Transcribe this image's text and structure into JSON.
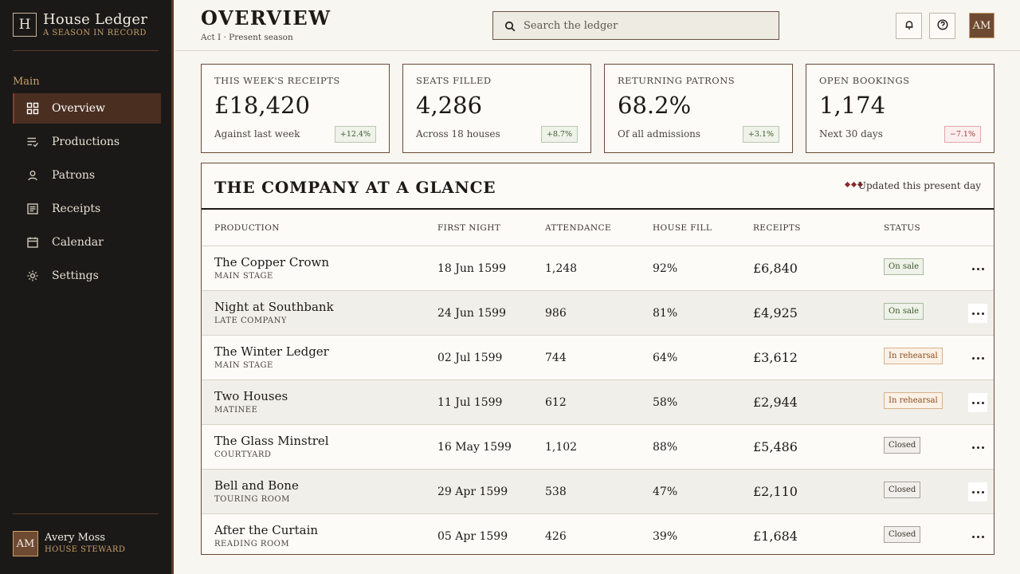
{
  "brand": {
    "mark": "H",
    "title": "House Ledger",
    "subtitle": "A SEASON IN RECORD"
  },
  "sidebar": {
    "section_label": "Main",
    "items": [
      {
        "label": "Overview",
        "icon": "grid-icon",
        "active": true
      },
      {
        "label": "Productions",
        "icon": "list-check-icon",
        "active": false
      },
      {
        "label": "Patrons",
        "icon": "person-icon",
        "active": false
      },
      {
        "label": "Receipts",
        "icon": "receipt-icon",
        "active": false
      },
      {
        "label": "Calendar",
        "icon": "calendar-icon",
        "active": false
      },
      {
        "label": "Settings",
        "icon": "gear-icon",
        "active": false
      }
    ],
    "user": {
      "initials": "AM",
      "name": "Avery Moss",
      "role": "HOUSE STEWARD"
    }
  },
  "header": {
    "title": "OVERVIEW",
    "subtitle": "Act I · Present season",
    "search_placeholder": "Search the ledger",
    "avatar_initials": "AM"
  },
  "stats": [
    {
      "label": "THIS WEEK'S RECEIPTS",
      "value": "£18,420",
      "note": "Against last week",
      "delta": "+12.4%",
      "trend": "up"
    },
    {
      "label": "SEATS FILLED",
      "value": "4,286",
      "note": "Across 18 houses",
      "delta": "+8.7%",
      "trend": "up"
    },
    {
      "label": "RETURNING PATRONS",
      "value": "68.2%",
      "note": "Of all admissions",
      "delta": "+3.1%",
      "trend": "up"
    },
    {
      "label": "OPEN BOOKINGS",
      "value": "1,174",
      "note": "Next 30 days",
      "delta": "−7.1%",
      "trend": "down"
    }
  ],
  "panel": {
    "title": "THE COMPANY AT A GLANCE",
    "updated": "Updated this present day",
    "columns": [
      "PRODUCTION",
      "FIRST NIGHT",
      "ATTENDANCE",
      "HOUSE FILL",
      "RECEIPTS",
      "STATUS"
    ],
    "rows": [
      {
        "name": "The Copper Crown",
        "venue": "MAIN STAGE",
        "first_night": "18 Jun 1599",
        "attendance": "1,248",
        "fill": "92%",
        "receipts": "£6,840",
        "status": "On sale",
        "status_type": "onsale"
      },
      {
        "name": "Night at Southbank",
        "venue": "LATE COMPANY",
        "first_night": "24 Jun 1599",
        "attendance": "986",
        "fill": "81%",
        "receipts": "£4,925",
        "status": "On sale",
        "status_type": "onsale"
      },
      {
        "name": "The Winter Ledger",
        "venue": "MAIN STAGE",
        "first_night": "02 Jul 1599",
        "attendance": "744",
        "fill": "64%",
        "receipts": "£3,612",
        "status": "In rehearsal",
        "status_type": "rehearsal"
      },
      {
        "name": "Two Houses",
        "venue": "MATINEE",
        "first_night": "11 Jul 1599",
        "attendance": "612",
        "fill": "58%",
        "receipts": "£2,944",
        "status": "In rehearsal",
        "status_type": "rehearsal"
      },
      {
        "name": "The Glass Minstrel",
        "venue": "COURTYARD",
        "first_night": "16 May 1599",
        "attendance": "1,102",
        "fill": "88%",
        "receipts": "£5,486",
        "status": "Closed",
        "status_type": "closed"
      },
      {
        "name": "Bell and Bone",
        "venue": "TOURING ROOM",
        "first_night": "29 Apr 1599",
        "attendance": "538",
        "fill": "47%",
        "receipts": "£2,110",
        "status": "Closed",
        "status_type": "closed"
      },
      {
        "name": "After the Curtain",
        "venue": "READING ROOM",
        "first_night": "05 Apr 1599",
        "attendance": "426",
        "fill": "39%",
        "receipts": "£1,684",
        "status": "Closed",
        "status_type": "closed"
      }
    ]
  }
}
